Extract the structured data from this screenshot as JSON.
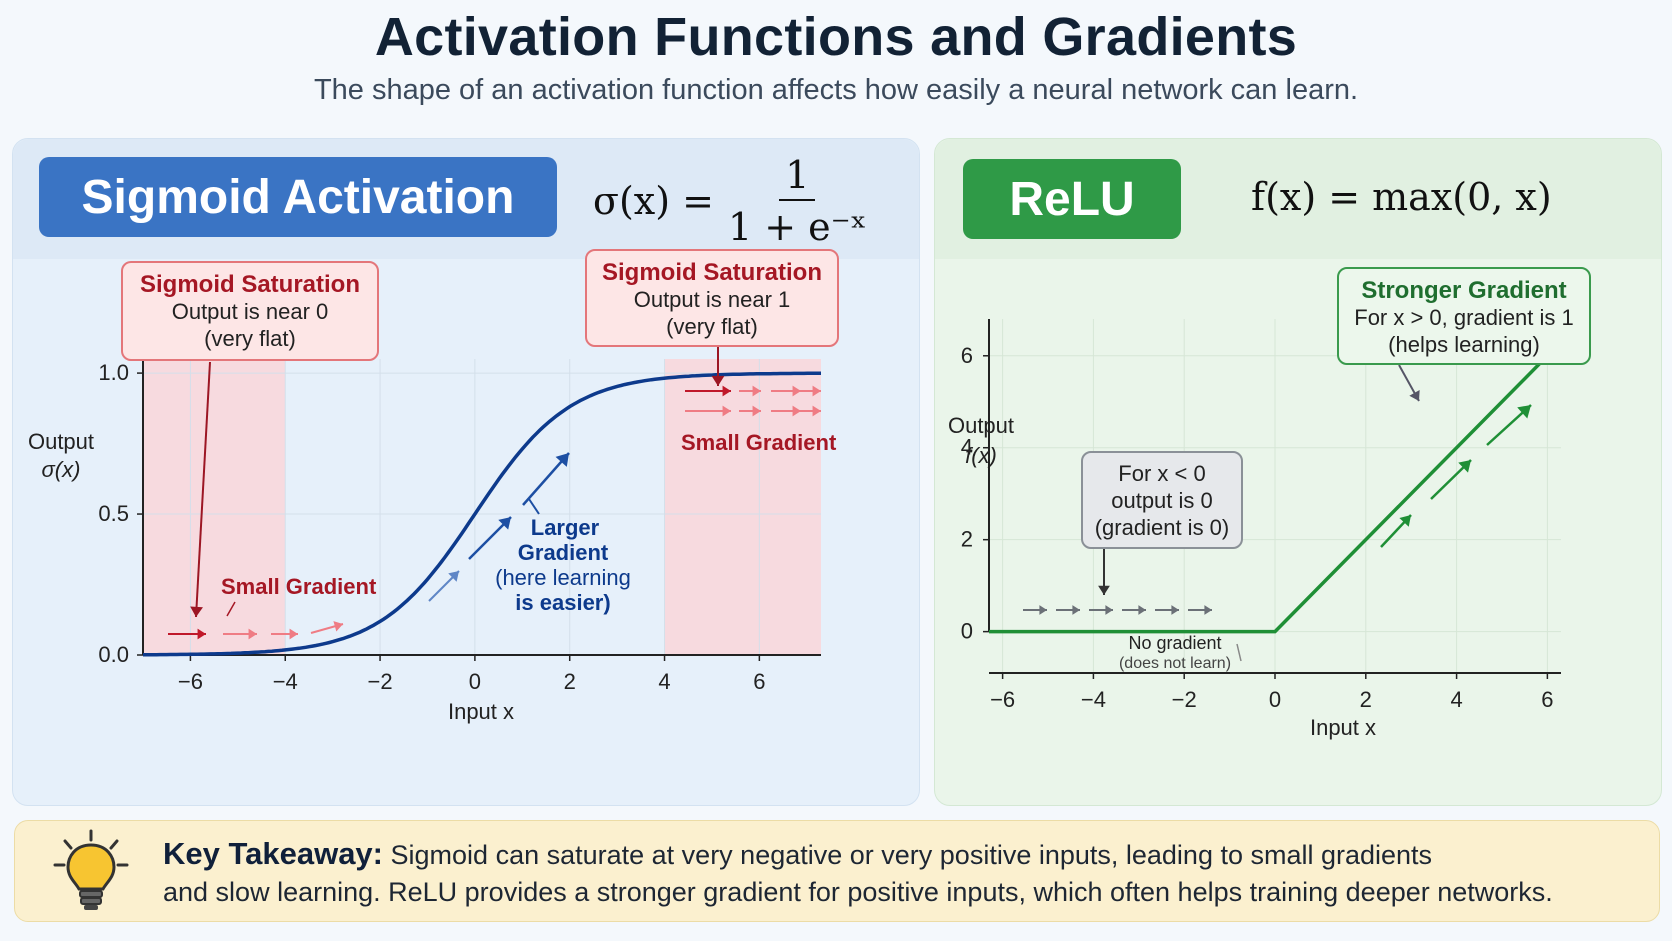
{
  "header": {
    "title": "Activation Functions and Gradients",
    "subtitle": "The shape of an activation function affects how easily a neural network can learn."
  },
  "colors": {
    "sigmoid_curve": "#0d3a8c",
    "relu_line": "#1f8f36",
    "saturation_region": "#f9d6d9",
    "red_label": "#a51724",
    "blue_label": "#0d3a8c",
    "takeaway_bg": "#fbf0cf"
  },
  "sigmoid_panel": {
    "badge": "Sigmoid Activation",
    "formula_lhs": "σ(x) =",
    "formula_num": "1",
    "formula_den": "1 + e⁻ˣ",
    "callout_left": {
      "title": "Sigmoid Saturation",
      "line1": "Output is near 0",
      "line2": "(very flat)"
    },
    "callout_right": {
      "title": "Sigmoid Saturation",
      "line1": "Output is near 1",
      "line2": "(very flat)"
    },
    "label_small_gradient_left": "Small Gradient",
    "label_small_gradient_right": "Small Gradient",
    "label_larger": [
      "Larger",
      "Gradient",
      "(here learning",
      "is easier)"
    ]
  },
  "relu_panel": {
    "badge": "ReLU",
    "formula": "f(x) = max(0, x)",
    "callout_green": {
      "title": "Stronger Gradient",
      "line1": "For x > 0, gradient is 1",
      "line2": "(helps learning)"
    },
    "callout_gray": {
      "line1": "For x < 0",
      "line2": "output is 0",
      "line3": "(gradient is 0)"
    },
    "no_gradient": "No gradient",
    "no_gradient_sub": "(does not learn)"
  },
  "chart_data": [
    {
      "type": "line",
      "title": "Sigmoid Activation",
      "function": "sigmoid",
      "xlabel": "Input x",
      "ylabel": [
        "Output",
        "σ(x)"
      ],
      "xlim": [
        -7,
        7.3
      ],
      "ylim": [
        0,
        1.05
      ],
      "xticks": [
        -6,
        -4,
        -2,
        0,
        2,
        4,
        6
      ],
      "yticks": [
        0.0,
        0.5,
        1.0
      ],
      "ytick_labels": [
        "0.0",
        "0.5",
        "1.0"
      ],
      "saturation_regions": [
        [
          -7,
          -4
        ],
        [
          4,
          7.3
        ]
      ],
      "series": [
        {
          "x": [
            -7,
            -6,
            -5,
            -4,
            -3,
            -2,
            -1,
            0,
            1,
            2,
            3,
            4,
            5,
            6,
            7.3
          ],
          "y": [
            0.001,
            0.002,
            0.007,
            0.018,
            0.047,
            0.119,
            0.269,
            0.5,
            0.731,
            0.881,
            0.953,
            0.982,
            0.993,
            0.998,
            0.999
          ]
        }
      ]
    },
    {
      "type": "line",
      "title": "ReLU",
      "function": "relu",
      "xlabel": "Input x",
      "ylabel": [
        "Output",
        "f(x)"
      ],
      "xlim": [
        -6.3,
        6.3
      ],
      "ylim": [
        -0.9,
        6.8
      ],
      "xticks": [
        -6,
        -4,
        -2,
        0,
        2,
        4,
        6
      ],
      "yticks": [
        0,
        2,
        4,
        6
      ],
      "series": [
        {
          "x": [
            -6.3,
            0,
            6.1
          ],
          "y": [
            0,
            0,
            6.1
          ]
        }
      ]
    }
  ],
  "takeaway": {
    "label": "Key Takeaway:",
    "line1": "Sigmoid can saturate at very negative or very positive inputs, leading to small gradients",
    "line2": "and slow learning. ReLU provides a stronger gradient for positive inputs, which often helps training deeper networks."
  }
}
